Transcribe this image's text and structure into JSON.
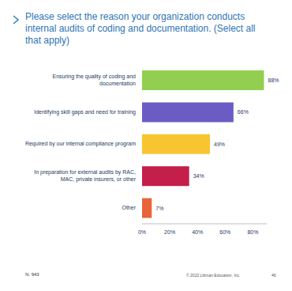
{
  "chart_data": {
    "type": "bar",
    "orientation": "horizontal",
    "title": "Please select the reason your organization conducts internal audits of coding and documentation. (Select all that apply)",
    "categories": [
      "Ensuring the quality of coding and documentation",
      "Identifying skill gaps and need for training",
      "Required by our internal compliance program",
      "In preparation for external audits by RAC, MAC, private insurers, or other",
      "Other"
    ],
    "values": [
      88,
      66,
      49,
      34,
      7
    ],
    "value_labels": [
      "88%",
      "66%",
      "49%",
      "34%",
      "7%"
    ],
    "colors": [
      "#92cf50",
      "#6a5cc4",
      "#f7c530",
      "#c41e4a",
      "#e8643a"
    ],
    "xlim": [
      0,
      90
    ],
    "xticks": [
      {
        "value": 0,
        "label": "0%"
      },
      {
        "value": 20,
        "label": "20%"
      },
      {
        "value": 40,
        "label": "40%"
      },
      {
        "value": 60,
        "label": "60%"
      },
      {
        "value": 80,
        "label": "80%"
      }
    ],
    "data_labels": true,
    "grid": false,
    "annotations": [
      "N: 943",
      "© 2022 Libman Education, Inc.",
      "46"
    ]
  }
}
